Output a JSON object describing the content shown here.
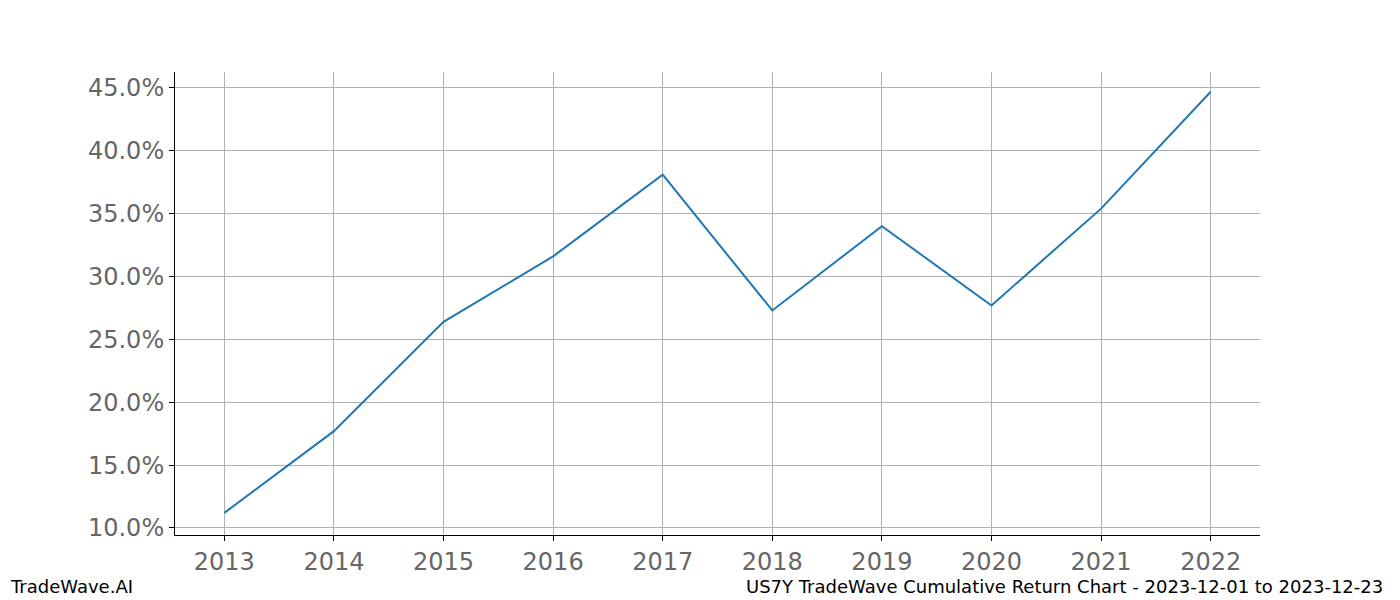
{
  "chart_data": {
    "type": "line",
    "x": [
      2013,
      2014,
      2015,
      2016,
      2017,
      2018,
      2019,
      2020,
      2021,
      2022
    ],
    "values": [
      11.2,
      17.7,
      26.4,
      31.6,
      38.1,
      27.3,
      34.0,
      27.7,
      35.4,
      44.7
    ],
    "color": "#1f77b4",
    "xlim": [
      2012.55,
      2022.45
    ],
    "xticks": [
      2013,
      2014,
      2015,
      2016,
      2017,
      2018,
      2019,
      2020,
      2021,
      2022
    ],
    "ylim": [
      9.44,
      46.27
    ],
    "yticks": [
      {
        "value": 10,
        "label": "10.0%"
      },
      {
        "value": 15,
        "label": "15.0%"
      },
      {
        "value": 20,
        "label": "20.0%"
      },
      {
        "value": 25,
        "label": "25.0%"
      },
      {
        "value": 30,
        "label": "30.0%"
      },
      {
        "value": 35,
        "label": "35.0%"
      },
      {
        "value": 40,
        "label": "40.0%"
      },
      {
        "value": 45,
        "label": "45.0%"
      }
    ],
    "grid": true,
    "annotations": [
      "TradeWave.AI",
      "US7Y TradeWave Cumulative Return Chart - 2023-12-01 to 2023-12-23"
    ]
  }
}
